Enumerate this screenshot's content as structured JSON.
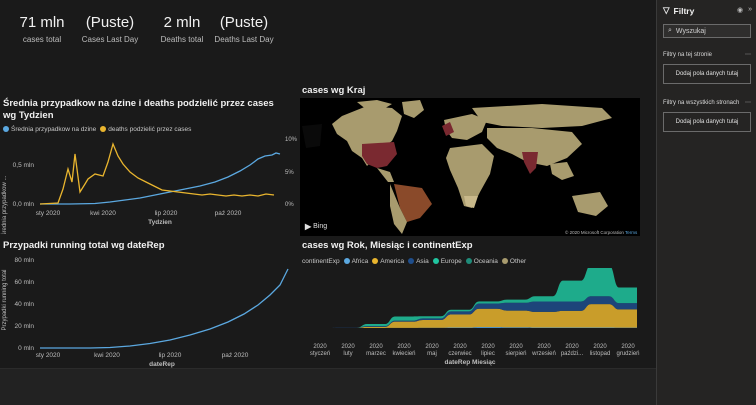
{
  "kpis": [
    {
      "value": "71 mln",
      "label": "cases total"
    },
    {
      "value": "(Puste)",
      "label": "Cases Last Day"
    },
    {
      "value": "2 mln",
      "label": "Deaths total"
    },
    {
      "value": "(Puste)",
      "label": "Deaths Last Day"
    }
  ],
  "visual1": {
    "title": "Średnia przypadkow na dzine i deaths podzielić przez cases wg Tydzien",
    "legend": [
      "Średnia przypadkow na dzine",
      "deaths podzielić przez cases"
    ],
    "ylabel": "Średnia przypadkow ...",
    "xlabel": "Tydzien",
    "yticks": [
      "0,5 mln",
      "0,0 mln"
    ],
    "xticks": [
      "sty 2020",
      "kwi 2020",
      "lip 2020",
      "paź 2020"
    ]
  },
  "visual2": {
    "title": "cases wg Kraj",
    "yticks": [
      "10%",
      "5%",
      "0%"
    ],
    "bing": "Bing",
    "copyright": "© 2020 Microsoft Corporation",
    "terms": "Terms"
  },
  "visual3": {
    "title": "Przypadki running total wg dateRep",
    "ylabel": "Przypadki running total",
    "xlabel": "dateRep",
    "yticks": [
      "80 mln",
      "60 mln",
      "40 mln",
      "20 mln",
      "0 mln"
    ],
    "xticks": [
      "sty 2020",
      "kwi 2020",
      "lip 2020",
      "paź 2020"
    ]
  },
  "visual4": {
    "title": "cases wg Rok, Miesiąc i continentExp",
    "legend_title": "continentExp",
    "legend": [
      "Africa",
      "America",
      "Asia",
      "Europe",
      "Oceania",
      "Other"
    ],
    "xlabel": "dateRep Miesiąc",
    "months": [
      "styczeń",
      "luty",
      "marzec",
      "kwiecień",
      "maj",
      "czerwiec",
      "lipiec",
      "sierpień",
      "wrzesień",
      "październik",
      "listopad",
      "grudzień"
    ],
    "month_labels": [
      "styczeń",
      "luty",
      "marzec",
      "kwiecień",
      "maj",
      "czerwiec",
      "lipiec",
      "sierpień",
      "wrzesień",
      "paździ...",
      "listopad",
      "grudzień"
    ],
    "year": "2020"
  },
  "filters": {
    "title": "Filtry",
    "search_placeholder": "Wyszukaj",
    "section_page": "Filtry na tej stronie",
    "section_all": "Filtry na wszystkich stronach",
    "add_fields": "Dodaj pola danych tutaj"
  },
  "colors": {
    "Africa": "#5ba8e0",
    "America": "#e9b52e",
    "Asia": "#1f4e8c",
    "Europe": "#20c5a0",
    "Oceania": "#1f8c7a",
    "Other": "#a89b6e"
  },
  "chart_data": [
    {
      "type": "line",
      "title": "Średnia przypadkow na dzine i deaths podzielić przez cases wg Tydzien",
      "xlabel": "Tydzien",
      "ylabel": "Średnia przypadkow ...",
      "x": [
        "2020-01",
        "2020-02",
        "2020-03",
        "2020-04",
        "2020-05",
        "2020-06",
        "2020-07",
        "2020-08",
        "2020-09",
        "2020-10",
        "2020-11",
        "2020-12"
      ],
      "series": [
        {
          "name": "Średnia przypadkow na dzine",
          "values": [
            0.0,
            0.0,
            0.03,
            0.08,
            0.1,
            0.14,
            0.2,
            0.28,
            0.35,
            0.48,
            0.62,
            0.68
          ]
        },
        {
          "name": "deaths podzielić przez cases",
          "values": [
            0.02,
            0.05,
            0.4,
            0.55,
            0.3,
            0.14,
            0.12,
            0.1,
            0.08,
            0.07,
            0.07,
            0.06
          ]
        }
      ],
      "ylim": [
        0,
        0.7
      ]
    },
    {
      "type": "area",
      "title": "Przypadki running total wg dateRep",
      "xlabel": "dateRep",
      "ylabel": "Przypadki running total",
      "x": [
        "2020-01",
        "2020-02",
        "2020-03",
        "2020-04",
        "2020-05",
        "2020-06",
        "2020-07",
        "2020-08",
        "2020-09",
        "2020-10",
        "2020-11",
        "2020-12"
      ],
      "series": [
        {
          "name": "Przypadki running total",
          "values": [
            0,
            0.1,
            0.8,
            3,
            6,
            10,
            17,
            25,
            33,
            45,
            60,
            71
          ]
        }
      ],
      "ylim": [
        0,
        80
      ]
    },
    {
      "type": "area",
      "title": "cases wg Rok, Miesiąc i continentExp",
      "xlabel": "dateRep Miesiąc",
      "categories": [
        "styczeń",
        "luty",
        "marzec",
        "kwiecień",
        "maj",
        "czerwiec",
        "lipiec",
        "sierpień",
        "wrzesień",
        "październik",
        "listopad",
        "grudzień"
      ],
      "series": [
        {
          "name": "Africa",
          "values": [
            0,
            0,
            0.01,
            0.02,
            0.05,
            0.1,
            0.2,
            0.15,
            0.1,
            0.1,
            0.1,
            0.08
          ]
        },
        {
          "name": "America",
          "values": [
            0,
            0,
            0.2,
            1.2,
            1.5,
            2.5,
            3.5,
            3.2,
            3.0,
            3.2,
            4.5,
            3.5
          ]
        },
        {
          "name": "Asia",
          "values": [
            0.01,
            0.06,
            0.15,
            0.2,
            0.3,
            0.6,
            1.0,
            1.5,
            2.0,
            1.8,
            1.5,
            1.2
          ]
        },
        {
          "name": "Europe",
          "values": [
            0,
            0,
            0.4,
            0.8,
            0.4,
            0.3,
            0.4,
            0.6,
            1.0,
            4.0,
            6.0,
            3.0
          ]
        },
        {
          "name": "Oceania",
          "values": [
            0,
            0,
            0.005,
            0.002,
            0.001,
            0.001,
            0.01,
            0.005,
            0.002,
            0.001,
            0.001,
            0.001
          ]
        },
        {
          "name": "Other",
          "values": [
            0,
            0,
            0,
            0,
            0,
            0,
            0,
            0,
            0,
            0,
            0,
            0
          ]
        }
      ]
    }
  ]
}
